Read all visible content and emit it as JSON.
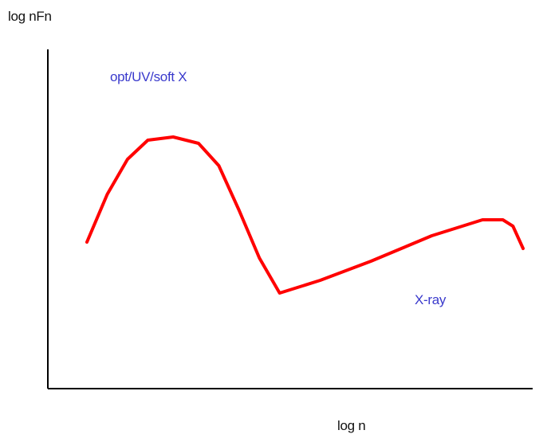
{
  "chart_data": {
    "type": "line",
    "title": "",
    "xlabel": "log n",
    "ylabel": "log nFn",
    "annotations": [
      {
        "text": "opt/UV/soft X"
      },
      {
        "text": "X-ray"
      }
    ],
    "series": [
      {
        "x": [
          0.14,
          0.18,
          0.22,
          0.26,
          0.31,
          0.36,
          0.4,
          0.44,
          0.48,
          0.52,
          0.56,
          0.6,
          0.65,
          0.7,
          0.76,
          0.82,
          0.88,
          0.92,
          0.96,
          0.98,
          1.0
        ],
        "y": [
          0.46,
          0.61,
          0.72,
          0.78,
          0.79,
          0.77,
          0.7,
          0.56,
          0.41,
          0.3,
          0.32,
          0.34,
          0.37,
          0.4,
          0.44,
          0.48,
          0.51,
          0.53,
          0.53,
          0.51,
          0.44
        ]
      }
    ],
    "colors": {
      "curve": "#ff0000",
      "axes": "#000000",
      "annotation": "#3a3acc"
    },
    "grid": false,
    "ticks": false
  }
}
